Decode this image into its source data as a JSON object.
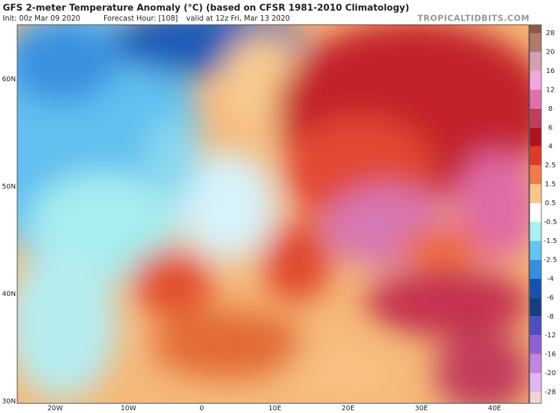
{
  "header": {
    "title": "GFS 2-meter Temperature Anomaly (°C) (based on CFSR 1981-2010 Climatology)",
    "init": "Init: 00z Mar 09 2020",
    "forecast_hour": "Forecast Hour: [108]",
    "valid": "valid at 12z Fri, Mar 13 2020",
    "watermark": "TROPICALTIDBITS.COM"
  },
  "map": {
    "lat_labels": [
      "60N",
      "50N",
      "40N",
      "30N"
    ],
    "lon_labels": [
      "20W",
      "10W",
      "0",
      "10E",
      "20E",
      "30E",
      "40E"
    ]
  },
  "colorbar": {
    "labels": [
      "28",
      "20",
      "16",
      "12",
      "8",
      "6",
      "4",
      "2.5",
      "1.5",
      "0.5",
      "-0.5",
      "-1.5",
      "-2.5",
      "-4",
      "-6",
      "-8",
      "-12",
      "-16",
      "-20",
      "-28"
    ],
    "colors": [
      "#8a5a48",
      "#b07a6c",
      "#d2a2b2",
      "#f2a8dc",
      "#e070aa",
      "#c23c5c",
      "#b0121e",
      "#e03a22",
      "#f27a44",
      "#f9c686",
      "#ffffff",
      "#a4f0f2",
      "#62c6f0",
      "#3290e0",
      "#1452b2",
      "#123e82",
      "#4e4ec2",
      "#8e62d2",
      "#c284e2",
      "#e2b4f2",
      "#f2d4d4"
    ]
  }
}
